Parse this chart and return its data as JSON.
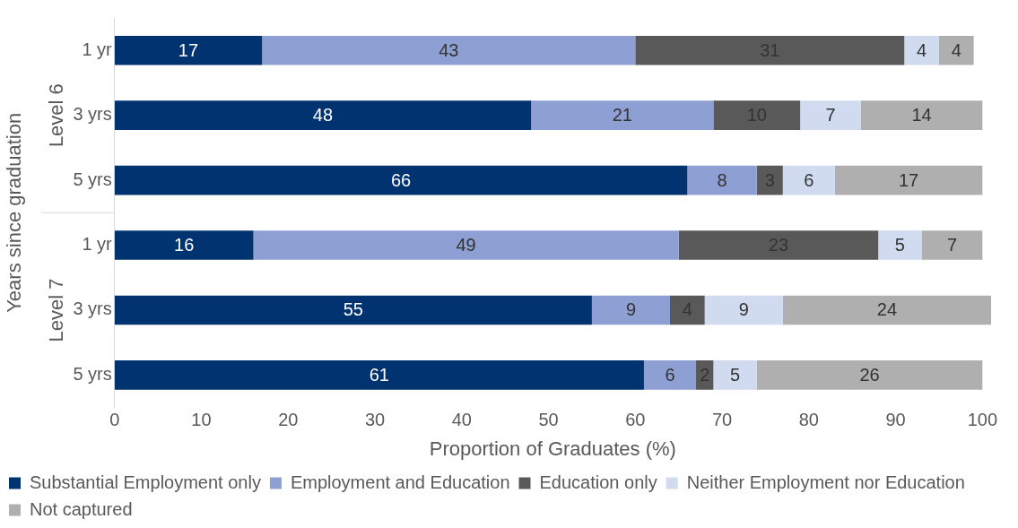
{
  "chart_data": {
    "type": "bar",
    "orientation": "horizontal",
    "stacked": true,
    "categories": [
      "1 yr",
      "3 yrs",
      "5 yrs",
      "1 yr",
      "3 yrs",
      "5 yrs"
    ],
    "series": [
      {
        "name": "Substantial Employment only",
        "color": "#003370",
        "values": [
          17,
          48,
          66,
          16,
          55,
          61
        ]
      },
      {
        "name": "Employment and Education",
        "color": "#8e9fd3",
        "values": [
          43,
          21,
          8,
          49,
          9,
          6
        ]
      },
      {
        "name": "Education only",
        "color": "#595959",
        "values": [
          31,
          10,
          3,
          23,
          4,
          2
        ]
      },
      {
        "name": "Neither Employment nor Education",
        "color": "#d0dbf0",
        "values": [
          4,
          7,
          6,
          5,
          9,
          5
        ]
      },
      {
        "name": "Not captured",
        "color": "#afafaf",
        "values": [
          4,
          14,
          17,
          7,
          24,
          26
        ]
      }
    ],
    "xlim": [
      0,
      101
    ],
    "xticks": [
      0,
      10,
      20,
      30,
      40,
      50,
      60,
      70,
      80,
      90,
      100
    ],
    "xlabel": "Proportion of Graduates (%)",
    "ylabel": "Years since graduation",
    "annotations": [
      "Level 6",
      "Level 7"
    ],
    "data_labels": true,
    "grid": false,
    "legend": "bottom"
  }
}
